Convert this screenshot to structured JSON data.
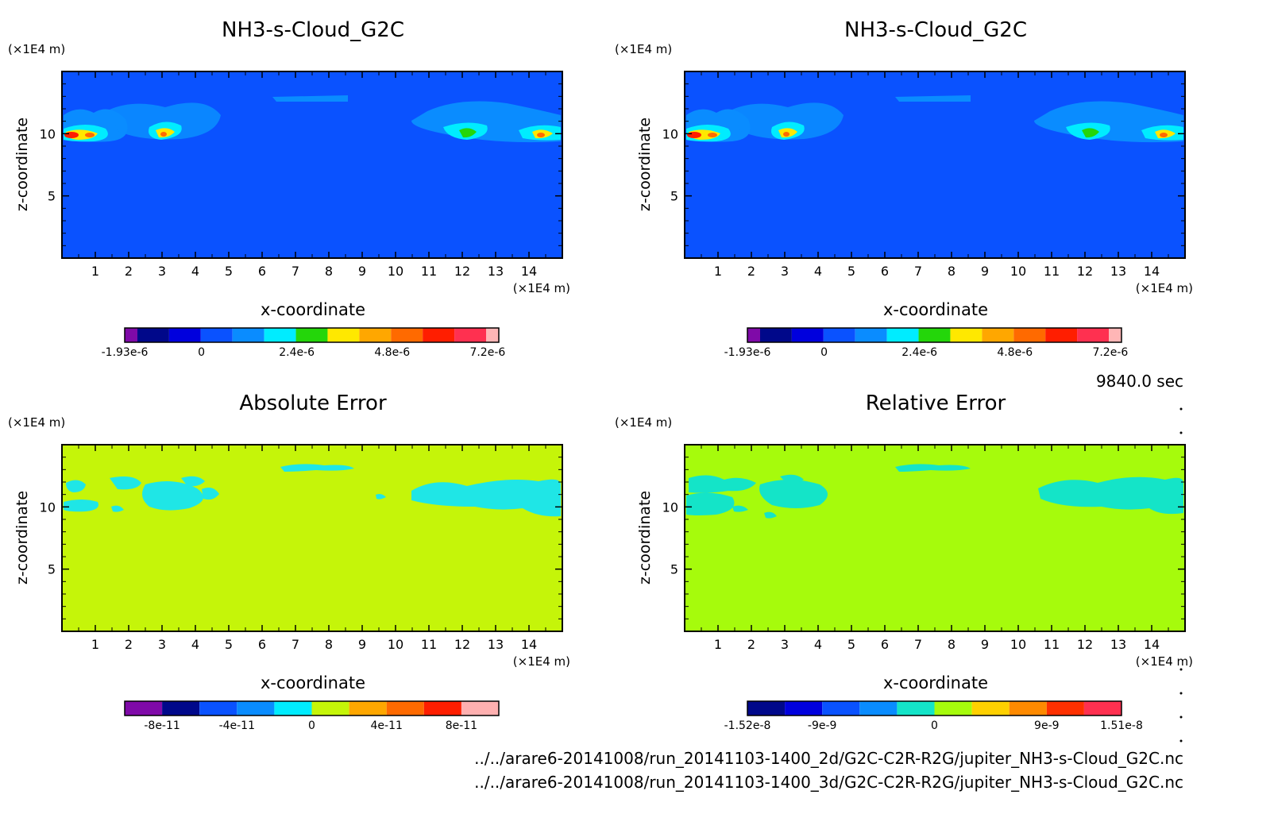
{
  "time_label": "9840.0 sec",
  "file_paths": [
    "../../arare6-20141008/run_20141103-1400_2d/G2C-C2R-R2G/jupiter_NH3-s-Cloud_G2C.nc",
    "../../arare6-20141008/run_20141103-1400_3d/G2C-C2R-R2G/jupiter_NH3-s-Cloud_G2C.nc"
  ],
  "colors": {
    "cloud_field": "#0a52ff",
    "abs_field": "#c5f509",
    "rel_field": "#a6fb0c",
    "error_patch": "#1fe6e6",
    "rel_patch": "#14e4c8"
  },
  "chart_data": [
    {
      "type": "heatmap",
      "title": "NH3-s-Cloud_G2C",
      "xlabel": "x-coordinate",
      "ylabel": "z-coordinate",
      "x_unit": "(×1E4 m)",
      "y_unit": "(×1E4 m)",
      "x_ticks": [
        "1",
        "2",
        "3",
        "4",
        "5",
        "6",
        "7",
        "8",
        "9",
        "10",
        "11",
        "12",
        "13",
        "14"
      ],
      "y_ticks": [
        "5",
        "10"
      ],
      "xlim": [
        0,
        15
      ],
      "ylim": [
        0,
        15
      ],
      "colorbar": {
        "colors": [
          "#7f0aa8",
          "#00088a",
          "#0000dd",
          "#0a52ff",
          "#0a8cff",
          "#00ecff",
          "#24d60a",
          "#ffe800",
          "#ffa700",
          "#ff6a00",
          "#ff1e00",
          "#ff3050",
          "#ffb6b6"
        ],
        "labels": [
          "-1.93e-6",
          "0",
          "2.4e-6",
          "4.8e-6",
          "7.2e-6"
        ]
      }
    },
    {
      "type": "heatmap",
      "title": "NH3-s-Cloud_G2C",
      "xlabel": "x-coordinate",
      "ylabel": "z-coordinate",
      "x_unit": "(×1E4 m)",
      "y_unit": "(×1E4 m)",
      "x_ticks": [
        "1",
        "2",
        "3",
        "4",
        "5",
        "6",
        "7",
        "8",
        "9",
        "10",
        "11",
        "12",
        "13",
        "14"
      ],
      "y_ticks": [
        "5",
        "10"
      ],
      "xlim": [
        0,
        15
      ],
      "ylim": [
        0,
        15
      ],
      "colorbar": {
        "colors": [
          "#7f0aa8",
          "#00088a",
          "#0000dd",
          "#0a52ff",
          "#0a8cff",
          "#00ecff",
          "#24d60a",
          "#ffe800",
          "#ffa700",
          "#ff6a00",
          "#ff1e00",
          "#ff3050",
          "#ffb6b6"
        ],
        "labels": [
          "-1.93e-6",
          "0",
          "2.4e-6",
          "4.8e-6",
          "7.2e-6"
        ]
      }
    },
    {
      "type": "heatmap",
      "title": "Absolute Error",
      "xlabel": "x-coordinate",
      "ylabel": "z-coordinate",
      "x_unit": "(×1E4 m)",
      "y_unit": "(×1E4 m)",
      "x_ticks": [
        "1",
        "2",
        "3",
        "4",
        "5",
        "6",
        "7",
        "8",
        "9",
        "10",
        "11",
        "12",
        "13",
        "14"
      ],
      "y_ticks": [
        "5",
        "10"
      ],
      "xlim": [
        0,
        15
      ],
      "ylim": [
        0,
        15
      ],
      "colorbar": {
        "colors": [
          "#7f0aa8",
          "#00088a",
          "#0a52ff",
          "#0a8cff",
          "#00ecff",
          "#c5f509",
          "#ffa700",
          "#ff6a00",
          "#ff1e00",
          "#ffb0b0"
        ],
        "labels": [
          "-8e-11",
          "-4e-11",
          "0",
          "4e-11",
          "8e-11"
        ]
      }
    },
    {
      "type": "heatmap",
      "title": "Relative Error",
      "xlabel": "x-coordinate",
      "ylabel": "z-coordinate",
      "x_unit": "(×1E4 m)",
      "y_unit": "(×1E4 m)",
      "x_ticks": [
        "1",
        "2",
        "3",
        "4",
        "5",
        "6",
        "7",
        "8",
        "9",
        "10",
        "11",
        "12",
        "13",
        "14"
      ],
      "y_ticks": [
        "5",
        "10"
      ],
      "xlim": [
        0,
        15
      ],
      "ylim": [
        0,
        15
      ],
      "colorbar": {
        "colors": [
          "#00088a",
          "#0000dd",
          "#0a52ff",
          "#0a8cff",
          "#14e4c8",
          "#a6fb0c",
          "#ffd000",
          "#ff8a00",
          "#ff3000",
          "#ff3050"
        ],
        "labels": [
          "-1.52e-8",
          "-9e-9",
          "0",
          "9e-9",
          "1.51e-8"
        ]
      }
    }
  ]
}
